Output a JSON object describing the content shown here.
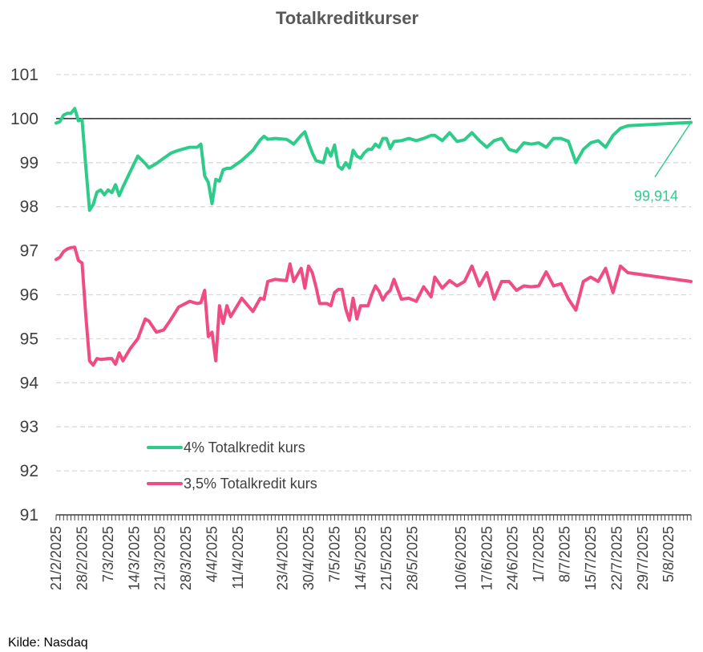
{
  "chart_data": {
    "type": "line",
    "title": "Totalkreditkurser",
    "source": "Kilde: Nasdaq",
    "ylim": [
      91,
      101
    ],
    "yticks": [
      91,
      92,
      93,
      94,
      95,
      96,
      97,
      98,
      99,
      100,
      101
    ],
    "grid": true,
    "reference_line": 100,
    "x_range": [
      "2025-02-21",
      "2025-08-11"
    ],
    "xtick_dates": [
      "2025-02-21",
      "2025-02-28",
      "2025-03-07",
      "2025-03-14",
      "2025-03-21",
      "2025-03-28",
      "2025-04-04",
      "2025-04-11",
      "2025-04-23",
      "2025-04-30",
      "2025-05-07",
      "2025-05-14",
      "2025-05-21",
      "2025-05-28",
      "2025-06-10",
      "2025-06-17",
      "2025-06-24",
      "2025-07-01",
      "2025-07-08",
      "2025-07-15",
      "2025-07-22",
      "2025-07-29",
      "2025-08-05"
    ],
    "xtick_labels": [
      "21/2/2025",
      "28/2/2025",
      "7/3/2025",
      "14/3/2025",
      "21/3/2025",
      "28/3/2025",
      "4/4/2025",
      "11/4/2025",
      "23/4/2025",
      "30/4/2025",
      "7/5/2025",
      "14/5/2025",
      "21/5/2025",
      "28/5/2025",
      "10/6/2025",
      "17/6/2025",
      "24/6/2025",
      "1/7/2025",
      "8/7/2025",
      "15/7/2025",
      "22/7/2025",
      "29/7/2025",
      "5/8/2025"
    ],
    "legend_position": "bottom-left",
    "annotation": {
      "text": "99,914",
      "series": "4% Totalkredit kurs"
    },
    "series": [
      {
        "name": "4% Totalkredit kurs",
        "color": "#2ECC8B",
        "points": [
          [
            "2025-02-21",
            99.9
          ],
          [
            "2025-02-22",
            99.93
          ],
          [
            "2025-02-23",
            100.08
          ],
          [
            "2025-02-24",
            100.12
          ],
          [
            "2025-02-25",
            100.12
          ],
          [
            "2025-02-26",
            100.23
          ],
          [
            "2025-02-27",
            99.95
          ],
          [
            "2025-02-28",
            99.97
          ],
          [
            "2025-03-01",
            98.9
          ],
          [
            "2025-03-02",
            97.92
          ],
          [
            "2025-03-03",
            98.05
          ],
          [
            "2025-03-04",
            98.33
          ],
          [
            "2025-03-05",
            98.38
          ],
          [
            "2025-03-06",
            98.27
          ],
          [
            "2025-03-07",
            98.38
          ],
          [
            "2025-03-08",
            98.32
          ],
          [
            "2025-03-09",
            98.5
          ],
          [
            "2025-03-10",
            98.25
          ],
          [
            "2025-03-11",
            98.45
          ],
          [
            "2025-03-13",
            98.8
          ],
          [
            "2025-03-15",
            99.15
          ],
          [
            "2025-03-17",
            98.98
          ],
          [
            "2025-03-18",
            98.88
          ],
          [
            "2025-03-20",
            98.98
          ],
          [
            "2025-03-22",
            99.1
          ],
          [
            "2025-03-24",
            99.22
          ],
          [
            "2025-03-26",
            99.28
          ],
          [
            "2025-03-29",
            99.35
          ],
          [
            "2025-03-31",
            99.35
          ],
          [
            "2025-04-01",
            99.42
          ],
          [
            "2025-04-02",
            98.7
          ],
          [
            "2025-04-03",
            98.55
          ],
          [
            "2025-04-04",
            98.07
          ],
          [
            "2025-04-05",
            98.62
          ],
          [
            "2025-04-06",
            98.58
          ],
          [
            "2025-04-07",
            98.84
          ],
          [
            "2025-04-08",
            98.87
          ],
          [
            "2025-04-09",
            98.87
          ],
          [
            "2025-04-12",
            99.05
          ],
          [
            "2025-04-15",
            99.28
          ],
          [
            "2025-04-17",
            99.52
          ],
          [
            "2025-04-18",
            99.6
          ],
          [
            "2025-04-19",
            99.53
          ],
          [
            "2025-04-21",
            99.55
          ],
          [
            "2025-04-24",
            99.53
          ],
          [
            "2025-04-25",
            99.48
          ],
          [
            "2025-04-26",
            99.42
          ],
          [
            "2025-04-28",
            99.62
          ],
          [
            "2025-04-29",
            99.7
          ],
          [
            "2025-04-30",
            99.45
          ],
          [
            "2025-05-01",
            99.22
          ],
          [
            "2025-05-02",
            99.05
          ],
          [
            "2025-05-03",
            99.02
          ],
          [
            "2025-05-04",
            99.0
          ],
          [
            "2025-05-05",
            99.32
          ],
          [
            "2025-05-06",
            99.15
          ],
          [
            "2025-05-07",
            99.4
          ],
          [
            "2025-05-08",
            98.92
          ],
          [
            "2025-05-09",
            98.85
          ],
          [
            "2025-05-10",
            99.0
          ],
          [
            "2025-05-11",
            98.88
          ],
          [
            "2025-05-12",
            99.28
          ],
          [
            "2025-05-13",
            99.15
          ],
          [
            "2025-05-14",
            99.1
          ],
          [
            "2025-05-15",
            99.22
          ],
          [
            "2025-05-16",
            99.3
          ],
          [
            "2025-05-17",
            99.3
          ],
          [
            "2025-05-18",
            99.42
          ],
          [
            "2025-05-19",
            99.35
          ],
          [
            "2025-05-20",
            99.55
          ],
          [
            "2025-05-21",
            99.55
          ],
          [
            "2025-05-22",
            99.32
          ],
          [
            "2025-05-23",
            99.48
          ],
          [
            "2025-05-25",
            99.5
          ],
          [
            "2025-05-27",
            99.55
          ],
          [
            "2025-05-29",
            99.5
          ],
          [
            "2025-05-31",
            99.55
          ],
          [
            "2025-06-02",
            99.62
          ],
          [
            "2025-06-03",
            99.62
          ],
          [
            "2025-06-05",
            99.5
          ],
          [
            "2025-06-07",
            99.68
          ],
          [
            "2025-06-09",
            99.48
          ],
          [
            "2025-06-11",
            99.52
          ],
          [
            "2025-06-13",
            99.68
          ],
          [
            "2025-06-15",
            99.5
          ],
          [
            "2025-06-17",
            99.35
          ],
          [
            "2025-06-19",
            99.5
          ],
          [
            "2025-06-21",
            99.55
          ],
          [
            "2025-06-23",
            99.3
          ],
          [
            "2025-06-25",
            99.25
          ],
          [
            "2025-06-27",
            99.45
          ],
          [
            "2025-06-29",
            99.42
          ],
          [
            "2025-07-01",
            99.45
          ],
          [
            "2025-07-03",
            99.35
          ],
          [
            "2025-07-05",
            99.55
          ],
          [
            "2025-07-07",
            99.55
          ],
          [
            "2025-07-09",
            99.48
          ],
          [
            "2025-07-11",
            99.0
          ],
          [
            "2025-07-13",
            99.3
          ],
          [
            "2025-07-15",
            99.45
          ],
          [
            "2025-07-17",
            99.5
          ],
          [
            "2025-07-19",
            99.35
          ],
          [
            "2025-07-21",
            99.62
          ],
          [
            "2025-07-23",
            99.78
          ],
          [
            "2025-07-25",
            99.84
          ],
          [
            "2025-08-11",
            99.914
          ]
        ]
      },
      {
        "name": "3,5% Totalkredit  kurs",
        "color": "#EF4C83",
        "points": [
          [
            "2025-02-21",
            96.8
          ],
          [
            "2025-02-22",
            96.85
          ],
          [
            "2025-02-23",
            96.98
          ],
          [
            "2025-02-24",
            97.04
          ],
          [
            "2025-02-25",
            97.07
          ],
          [
            "2025-02-26",
            97.08
          ],
          [
            "2025-02-27",
            96.78
          ],
          [
            "2025-02-28",
            96.72
          ],
          [
            "2025-03-01",
            95.52
          ],
          [
            "2025-03-02",
            94.5
          ],
          [
            "2025-03-03",
            94.4
          ],
          [
            "2025-03-04",
            94.55
          ],
          [
            "2025-03-05",
            94.53
          ],
          [
            "2025-03-06",
            94.54
          ],
          [
            "2025-03-07",
            94.55
          ],
          [
            "2025-03-08",
            94.55
          ],
          [
            "2025-03-09",
            94.42
          ],
          [
            "2025-03-10",
            94.68
          ],
          [
            "2025-03-11",
            94.5
          ],
          [
            "2025-03-13",
            94.78
          ],
          [
            "2025-03-15",
            95.0
          ],
          [
            "2025-03-17",
            95.45
          ],
          [
            "2025-03-18",
            95.4
          ],
          [
            "2025-03-20",
            95.15
          ],
          [
            "2025-03-22",
            95.2
          ],
          [
            "2025-03-24",
            95.45
          ],
          [
            "2025-03-26",
            95.72
          ],
          [
            "2025-03-29",
            95.85
          ],
          [
            "2025-03-31",
            95.8
          ],
          [
            "2025-04-01",
            95.82
          ],
          [
            "2025-04-02",
            96.1
          ],
          [
            "2025-04-03",
            95.05
          ],
          [
            "2025-04-04",
            95.15
          ],
          [
            "2025-04-05",
            94.5
          ],
          [
            "2025-04-06",
            95.75
          ],
          [
            "2025-04-07",
            95.35
          ],
          [
            "2025-04-08",
            95.75
          ],
          [
            "2025-04-09",
            95.5
          ],
          [
            "2025-04-12",
            95.92
          ],
          [
            "2025-04-15",
            95.62
          ],
          [
            "2025-04-17",
            95.92
          ],
          [
            "2025-04-18",
            95.9
          ],
          [
            "2025-04-19",
            96.3
          ],
          [
            "2025-04-21",
            96.35
          ],
          [
            "2025-04-24",
            96.32
          ],
          [
            "2025-04-25",
            96.7
          ],
          [
            "2025-04-26",
            96.3
          ],
          [
            "2025-04-28",
            96.6
          ],
          [
            "2025-04-29",
            96.15
          ],
          [
            "2025-04-30",
            96.65
          ],
          [
            "2025-05-01",
            96.5
          ],
          [
            "2025-05-02",
            96.18
          ],
          [
            "2025-05-03",
            95.8
          ],
          [
            "2025-05-04",
            95.8
          ],
          [
            "2025-05-05",
            95.8
          ],
          [
            "2025-05-06",
            95.75
          ],
          [
            "2025-05-07",
            96.05
          ],
          [
            "2025-05-08",
            96.12
          ],
          [
            "2025-05-09",
            96.12
          ],
          [
            "2025-05-10",
            95.68
          ],
          [
            "2025-05-11",
            95.42
          ],
          [
            "2025-05-12",
            95.92
          ],
          [
            "2025-05-13",
            95.45
          ],
          [
            "2025-05-14",
            95.75
          ],
          [
            "2025-05-15",
            95.75
          ],
          [
            "2025-05-16",
            95.75
          ],
          [
            "2025-05-17",
            96.0
          ],
          [
            "2025-05-18",
            96.2
          ],
          [
            "2025-05-19",
            96.08
          ],
          [
            "2025-05-20",
            95.88
          ],
          [
            "2025-05-21",
            96.02
          ],
          [
            "2025-05-22",
            96.1
          ],
          [
            "2025-05-23",
            96.35
          ],
          [
            "2025-05-25",
            95.9
          ],
          [
            "2025-05-27",
            95.92
          ],
          [
            "2025-05-29",
            95.85
          ],
          [
            "2025-05-31",
            96.18
          ],
          [
            "2025-06-02",
            95.95
          ],
          [
            "2025-06-03",
            96.4
          ],
          [
            "2025-06-05",
            96.15
          ],
          [
            "2025-06-07",
            96.32
          ],
          [
            "2025-06-09",
            96.2
          ],
          [
            "2025-06-11",
            96.3
          ],
          [
            "2025-06-13",
            96.65
          ],
          [
            "2025-06-15",
            96.2
          ],
          [
            "2025-06-17",
            96.5
          ],
          [
            "2025-06-19",
            95.9
          ],
          [
            "2025-06-21",
            96.3
          ],
          [
            "2025-06-23",
            96.3
          ],
          [
            "2025-06-25",
            96.1
          ],
          [
            "2025-06-27",
            96.2
          ],
          [
            "2025-06-29",
            96.18
          ],
          [
            "2025-07-01",
            96.2
          ],
          [
            "2025-07-03",
            96.52
          ],
          [
            "2025-07-05",
            96.2
          ],
          [
            "2025-07-07",
            96.25
          ],
          [
            "2025-07-09",
            95.9
          ],
          [
            "2025-07-11",
            95.65
          ],
          [
            "2025-07-13",
            96.3
          ],
          [
            "2025-07-15",
            96.4
          ],
          [
            "2025-07-17",
            96.3
          ],
          [
            "2025-07-19",
            96.6
          ],
          [
            "2025-07-21",
            96.05
          ],
          [
            "2025-07-23",
            96.65
          ],
          [
            "2025-07-25",
            96.5
          ],
          [
            "2025-08-11",
            96.3
          ]
        ]
      }
    ]
  }
}
